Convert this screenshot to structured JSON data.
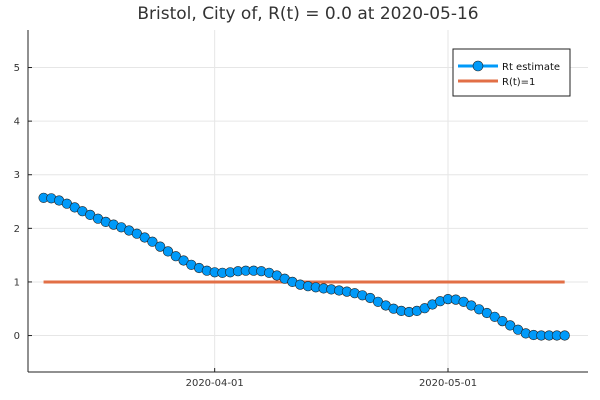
{
  "chart_data": {
    "type": "line",
    "title": "Bristol, City of, R(t) = 0.0 at 2020-05-16",
    "xlabel": "",
    "ylabel": "",
    "x_start": "2020-03-10",
    "x_end": "2020-05-16",
    "xlim": [
      "2020-03-08",
      "2020-05-19"
    ],
    "ylim": [
      -0.68,
      5.7
    ],
    "yticks": [
      0,
      1,
      2,
      3,
      4,
      5
    ],
    "xticks": [
      "2020-04-01",
      "2020-05-01"
    ],
    "grid": true,
    "legend": {
      "position": "top-right"
    },
    "series": [
      {
        "name": "Rt estimate",
        "color": "#009AF9",
        "marker": "circle",
        "values": [
          2.57,
          2.56,
          2.52,
          2.46,
          2.39,
          2.32,
          2.25,
          2.18,
          2.12,
          2.07,
          2.02,
          1.96,
          1.9,
          1.83,
          1.75,
          1.66,
          1.57,
          1.48,
          1.4,
          1.32,
          1.26,
          1.21,
          1.18,
          1.17,
          1.18,
          1.2,
          1.21,
          1.21,
          1.2,
          1.17,
          1.12,
          1.06,
          1.0,
          0.95,
          0.92,
          0.9,
          0.88,
          0.86,
          0.84,
          0.82,
          0.79,
          0.75,
          0.7,
          0.63,
          0.56,
          0.5,
          0.46,
          0.44,
          0.46,
          0.51,
          0.58,
          0.64,
          0.68,
          0.67,
          0.63,
          0.56,
          0.49,
          0.42,
          0.35,
          0.27,
          0.19,
          0.11,
          0.04,
          0.01,
          0.0,
          0.0,
          0.0,
          0.0
        ]
      },
      {
        "name": "R(t)=1",
        "color": "#E26F46",
        "values_constant": 1.0
      }
    ]
  }
}
